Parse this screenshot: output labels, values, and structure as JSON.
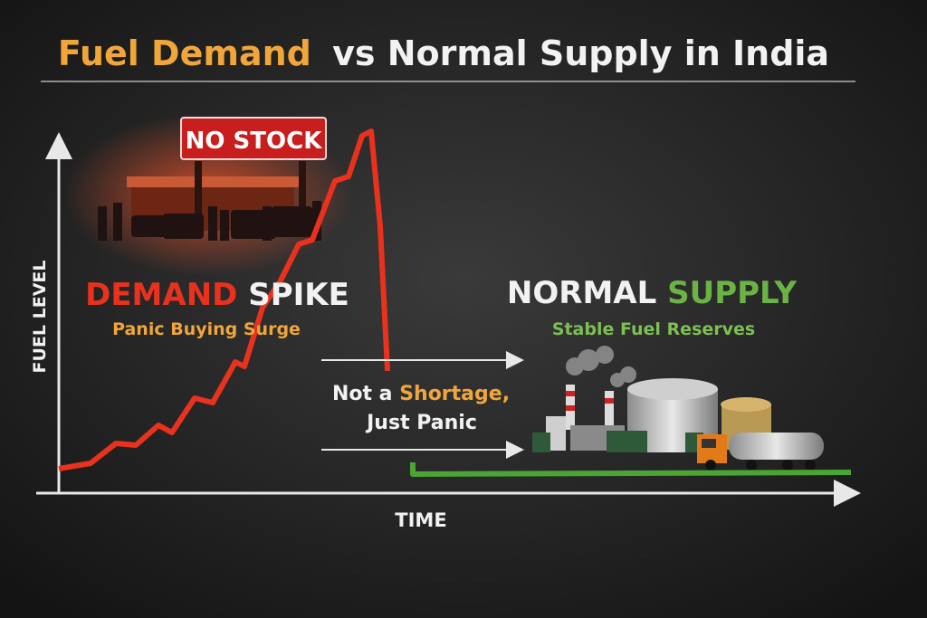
{
  "title": {
    "highlight": "Fuel Demand",
    "rest": "vs Normal Supply in India"
  },
  "sign": "NO STOCK",
  "demand": {
    "word1": "DEMAND",
    "word2": "SPIKE",
    "subtitle": "Panic Buying Surge"
  },
  "supply": {
    "word1": "NORMAL",
    "word2": "SUPPLY",
    "subtitle": "Stable Fuel Reserves"
  },
  "callout": {
    "part1": "Not a",
    "highlight": "Shortage,",
    "line2": "Just Panic"
  },
  "axes": {
    "y": "FUEL LEVEL",
    "x": "TIME"
  }
}
